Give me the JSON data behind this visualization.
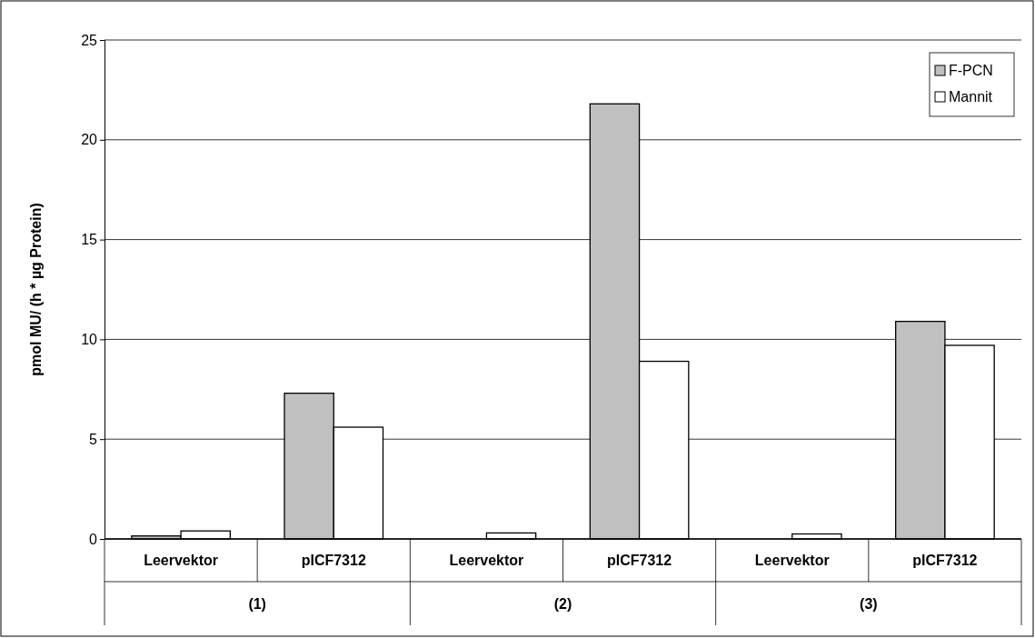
{
  "chart_data": {
    "type": "bar",
    "ylabel": "pmol MU/ (h * µg Protein)",
    "categories": [
      "Leervektor",
      "pICF7312",
      "Leervektor",
      "pICF7312",
      "Leervektor",
      "pICF7312"
    ],
    "series": [
      {
        "name": "F-PCN",
        "color": "#c0c0c0",
        "values": [
          0.15,
          7.3,
          0,
          21.8,
          0,
          10.9
        ]
      },
      {
        "name": "Mannit",
        "color": "#ffffff",
        "values": [
          0.4,
          5.6,
          0.3,
          8.9,
          0.25,
          9.7
        ]
      }
    ],
    "annotations": [
      "(1)",
      "(2)",
      "(3)"
    ],
    "ylim": [
      0,
      25
    ],
    "yticks": [
      0,
      5,
      10,
      15,
      20,
      25
    ],
    "grid": "y",
    "legend": "top right"
  }
}
